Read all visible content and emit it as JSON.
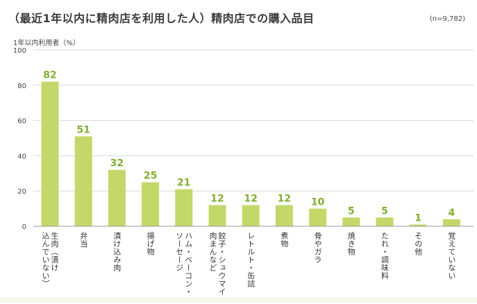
{
  "title": "（最近1年以内に精肉店を利用した人）精肉店での購入品目",
  "sample_size": "(n=9,782)",
  "y_axis_unit": "1年以内利用者（%）",
  "colors": {
    "bar": "#c3d869",
    "label": "#7fb02f",
    "grid": "#d9d9d9"
  },
  "chart_data": {
    "type": "bar",
    "title": "（最近1年以内に精肉店を利用した人）精肉店での購入品目",
    "ylabel": "1年以内利用者（%）",
    "xlabel": "",
    "ylim": [
      0,
      100
    ],
    "yticks": [
      0,
      20,
      40,
      60,
      80,
      100
    ],
    "grid": true,
    "categories": [
      "生肉（漬け\n込んでいない）",
      "弁当",
      "漬け込み肉",
      "揚げ物",
      "ハム・ベーコン・\nソーセージ",
      "餃子・シュウマイ・\n肉まんなど",
      "レトルト・缶詰",
      "煮物",
      "骨やガラ",
      "焼き物",
      "たれ・調味料",
      "その他",
      "覚えていない"
    ],
    "values": [
      82,
      51,
      32,
      25,
      21,
      12,
      12,
      12,
      10,
      5,
      5,
      1,
      4
    ]
  }
}
